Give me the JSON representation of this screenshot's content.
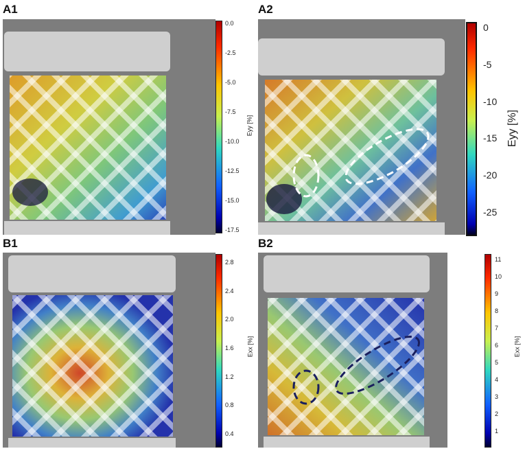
{
  "panels": [
    {
      "label": "A1",
      "colorbar": {
        "title": "Eyy [%]",
        "ticks": [
          "0.0",
          "-2.5",
          "-5.0",
          "-7.5",
          "-10.0",
          "-12.5",
          "-15.0",
          "-17.5"
        ],
        "scale": "red-top"
      }
    },
    {
      "label": "A2",
      "colorbar": {
        "title": "Eyy [%]",
        "ticks": [
          "0",
          "-5",
          "-10",
          "-15",
          "-20",
          "-25"
        ],
        "scale": "red-top"
      }
    },
    {
      "label": "B1",
      "colorbar": {
        "title": "Exx [%]",
        "ticks": [
          "2.8",
          "2.4",
          "2.0",
          "1.6",
          "1.2",
          "0.8",
          "0.4"
        ],
        "scale": "red-top"
      }
    },
    {
      "label": "B2",
      "colorbar": {
        "title": "Exx [%]",
        "ticks": [
          "11",
          "10",
          "9",
          "8",
          "7",
          "6",
          "5",
          "4",
          "3",
          "2",
          "1"
        ],
        "scale": "red-top"
      }
    }
  ],
  "colors": {
    "jet_top": "#b00000",
    "jet_bottom": "#00008f",
    "annotation_white": "#ffffff",
    "annotation_navy": "#1a1f5e"
  }
}
